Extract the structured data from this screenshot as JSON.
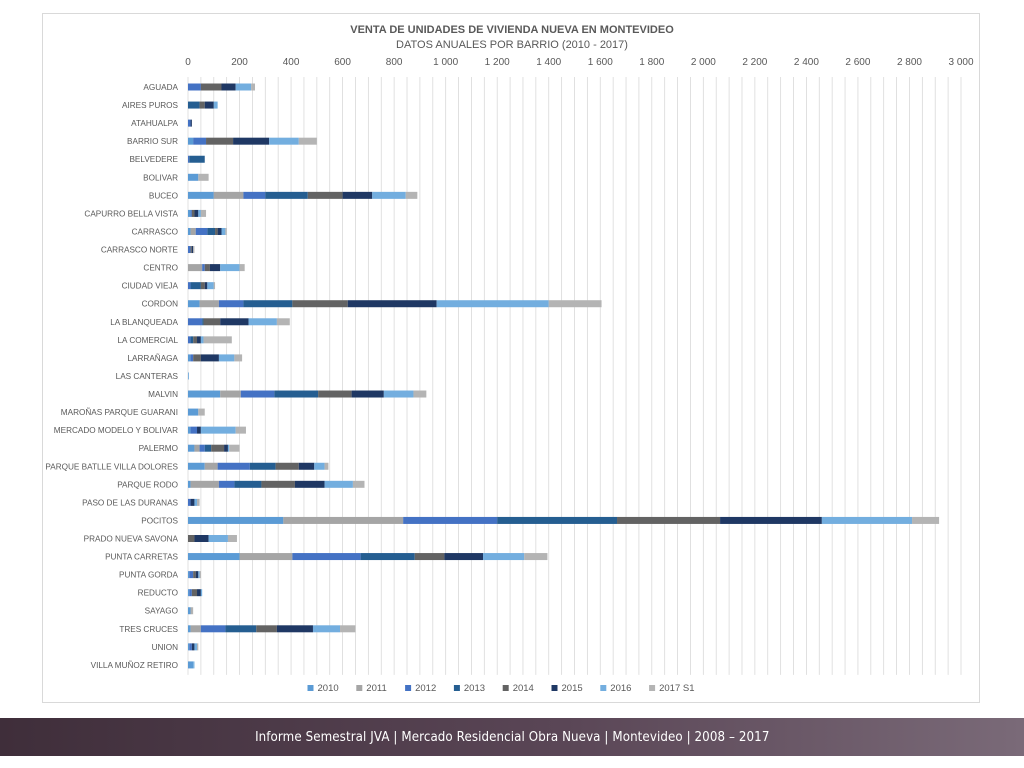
{
  "chart_data": {
    "type": "bar",
    "orientation": "horizontal",
    "stacked": true,
    "title": "VENTA DE UNIDADES DE VIVIENDA NUEVA EN MONTEVIDEO",
    "subtitle": "DATOS ANUALES POR BARRIO (2010 - 2017)",
    "xlabel": "",
    "ylabel": "",
    "xlim": [
      0,
      3000
    ],
    "x_ticks": [
      0,
      200,
      400,
      600,
      800,
      1000,
      1200,
      1400,
      1600,
      1800,
      2000,
      2200,
      2400,
      2600,
      2800,
      3000
    ],
    "x_tick_labels": [
      "0",
      "200",
      "400",
      "600",
      "800",
      "1 000",
      "1 200",
      "1 400",
      "1 600",
      "1 800",
      "2 000",
      "2 200",
      "2 400",
      "2 600",
      "2 800",
      "3 000"
    ],
    "grid": "vertical",
    "legend_position": "bottom",
    "categories": [
      "AGUADA",
      "AIRES PUROS",
      "ATAHUALPA",
      "BARRIO SUR",
      "BELVEDERE",
      "BOLIVAR",
      "BUCEO",
      "CAPURRO BELLA VISTA",
      "CARRASCO",
      "CARRASCO NORTE",
      "CENTRO",
      "CIUDAD VIEJA",
      "CORDON",
      "LA BLANQUEADA",
      "LA COMERCIAL",
      "LARRAÑAGA",
      "LAS CANTERAS",
      "MALVIN",
      "MAROÑAS PARQUE GUARANI",
      "MERCADO MODELO Y BOLIVAR",
      "PALERMO",
      "PARQUE BATLLE VILLA DOLORES",
      "PARQUE RODO",
      "PASO DE LAS DURANAS",
      "POCITOS",
      "PRADO NUEVA SAVONA",
      "PUNTA CARRETAS",
      "PUNTA GORDA",
      "REDUCTO",
      "SAYAGO",
      "TRES CRUCES",
      "UNION",
      "VILLA MUÑOZ RETIRO"
    ],
    "series": [
      {
        "name": "2010",
        "color": "#5b9bd5",
        "values": [
          0,
          0,
          0,
          20,
          0,
          40,
          100,
          10,
          10,
          0,
          0,
          0,
          45,
          0,
          0,
          10,
          3,
          125,
          40,
          10,
          25,
          65,
          10,
          0,
          370,
          0,
          200,
          5,
          5,
          10,
          10,
          5,
          20
        ]
      },
      {
        "name": "2011",
        "color": "#a5a5a5",
        "values": [
          0,
          0,
          0,
          0,
          0,
          0,
          115,
          0,
          20,
          0,
          55,
          0,
          75,
          0,
          0,
          0,
          0,
          80,
          0,
          0,
          20,
          50,
          110,
          0,
          465,
          0,
          205,
          0,
          0,
          5,
          40,
          0,
          0
        ]
      },
      {
        "name": "2012",
        "color": "#4472c4",
        "values": [
          50,
          0,
          10,
          50,
          5,
          0,
          85,
          5,
          45,
          10,
          10,
          10,
          95,
          55,
          10,
          10,
          0,
          130,
          0,
          25,
          20,
          125,
          60,
          10,
          365,
          0,
          265,
          15,
          10,
          0,
          95,
          10,
          0
        ]
      },
      {
        "name": "2013",
        "color": "#255e91",
        "values": [
          0,
          45,
          0,
          0,
          60,
          0,
          165,
          0,
          30,
          0,
          0,
          40,
          190,
          5,
          10,
          0,
          0,
          170,
          0,
          0,
          25,
          100,
          105,
          0,
          465,
          0,
          210,
          0,
          0,
          0,
          120,
          0,
          0
        ]
      },
      {
        "name": "2014",
        "color": "#636363",
        "values": [
          80,
          20,
          0,
          105,
          0,
          0,
          135,
          10,
          10,
          5,
          20,
          15,
          215,
          65,
          15,
          30,
          0,
          130,
          0,
          0,
          50,
          90,
          130,
          0,
          400,
          25,
          115,
          10,
          20,
          0,
          80,
          0,
          0
        ]
      },
      {
        "name": "2015",
        "color": "#1f3864",
        "values": [
          55,
          35,
          5,
          140,
          0,
          0,
          115,
          15,
          15,
          5,
          40,
          10,
          345,
          110,
          15,
          70,
          0,
          125,
          0,
          15,
          15,
          60,
          115,
          15,
          395,
          55,
          150,
          10,
          15,
          0,
          140,
          10,
          0
        ]
      },
      {
        "name": "2016",
        "color": "#73aedf",
        "values": [
          60,
          15,
          0,
          115,
          0,
          0,
          130,
          10,
          15,
          0,
          75,
          25,
          435,
          110,
          10,
          60,
          0,
          115,
          0,
          135,
          5,
          40,
          110,
          10,
          350,
          75,
          160,
          5,
          5,
          0,
          105,
          10,
          5
        ]
      },
      {
        "name": "2017 S1",
        "color": "#b4b4b4",
        "values": [
          15,
          0,
          0,
          70,
          0,
          40,
          45,
          20,
          5,
          5,
          20,
          5,
          205,
          50,
          110,
          30,
          0,
          50,
          25,
          40,
          40,
          15,
          45,
          10,
          105,
          35,
          90,
          5,
          0,
          5,
          60,
          5,
          0
        ]
      }
    ]
  },
  "footer": {
    "text": "Informe Semestral JVA | Mercado Residencial Obra Nueva | Montevideo | 2008 – 2017"
  }
}
